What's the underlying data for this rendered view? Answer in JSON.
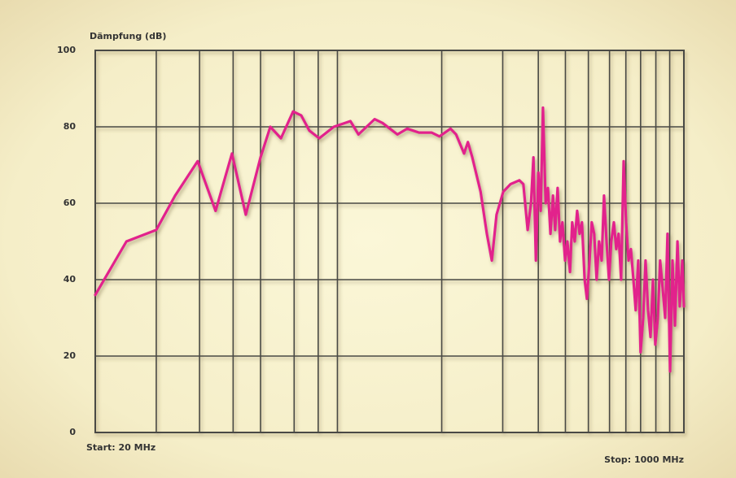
{
  "chart_data": {
    "type": "line",
    "ylabel": "Dämpfung (dB)",
    "annotations": [
      "Start: 20 MHz",
      "Stop: 1000 MHz"
    ],
    "xscale": "log",
    "xlim": [
      20,
      1000
    ],
    "xticks": [
      30,
      40,
      50,
      60,
      75,
      88,
      100,
      200,
      300,
      380,
      455,
      530,
      610,
      680,
      750,
      830,
      910
    ],
    "ylim": [
      0,
      100
    ],
    "yticks": [
      0,
      20,
      40,
      60,
      80,
      100
    ],
    "grid": true,
    "series": [
      {
        "color": "#e2218c",
        "x": [
          20,
          24.6,
          30.0,
          34.0,
          39.5,
          44.5,
          49.6,
          54.4,
          60.0,
          64.0,
          68.7,
          74.5,
          78.6,
          83.0,
          88.6,
          97.6,
          109,
          115,
          128,
          135,
          149,
          159,
          172,
          187,
          197,
          212,
          220,
          232,
          238,
          245,
          259,
          270,
          279,
          288,
          301,
          316,
          335,
          344,
          354,
          362,
          368,
          374,
          380,
          386,
          392,
          399,
          405,
          412,
          419,
          425,
          432,
          439,
          446,
          454,
          461,
          469,
          476,
          484,
          492,
          500,
          508,
          517,
          525,
          534,
          542,
          551,
          560,
          569,
          579,
          588,
          598,
          608,
          617,
          628,
          638,
          648,
          659,
          670,
          681,
          692,
          703,
          715,
          726,
          738,
          750,
          763,
          775,
          788,
          801,
          814,
          827,
          841,
          854,
          868,
          883,
          897,
          912,
          927,
          942,
          958,
          973,
          989,
          1000
        ],
        "values": [
          36,
          50,
          53,
          62,
          71,
          58,
          73,
          57,
          72,
          80,
          77,
          84,
          83,
          79,
          77,
          80,
          81.5,
          78,
          82,
          81,
          78,
          79.5,
          78.5,
          78.5,
          77.5,
          79.5,
          78,
          73,
          76,
          72,
          63,
          52,
          45,
          57,
          63,
          65,
          66,
          65,
          53,
          60,
          72,
          45,
          68,
          58,
          85,
          60,
          64,
          52,
          62,
          53,
          64,
          50,
          55,
          45,
          50,
          42,
          55,
          50,
          58,
          52,
          55,
          40,
          35,
          45,
          55,
          52,
          40,
          50,
          45,
          62,
          50,
          40,
          50,
          55,
          48,
          52,
          40,
          71,
          55,
          45,
          48,
          40,
          32,
          45,
          21,
          30,
          45,
          32,
          25,
          40,
          23,
          30,
          45,
          38,
          30,
          52,
          16,
          45,
          28,
          50,
          33,
          45,
          33
        ]
      }
    ]
  }
}
